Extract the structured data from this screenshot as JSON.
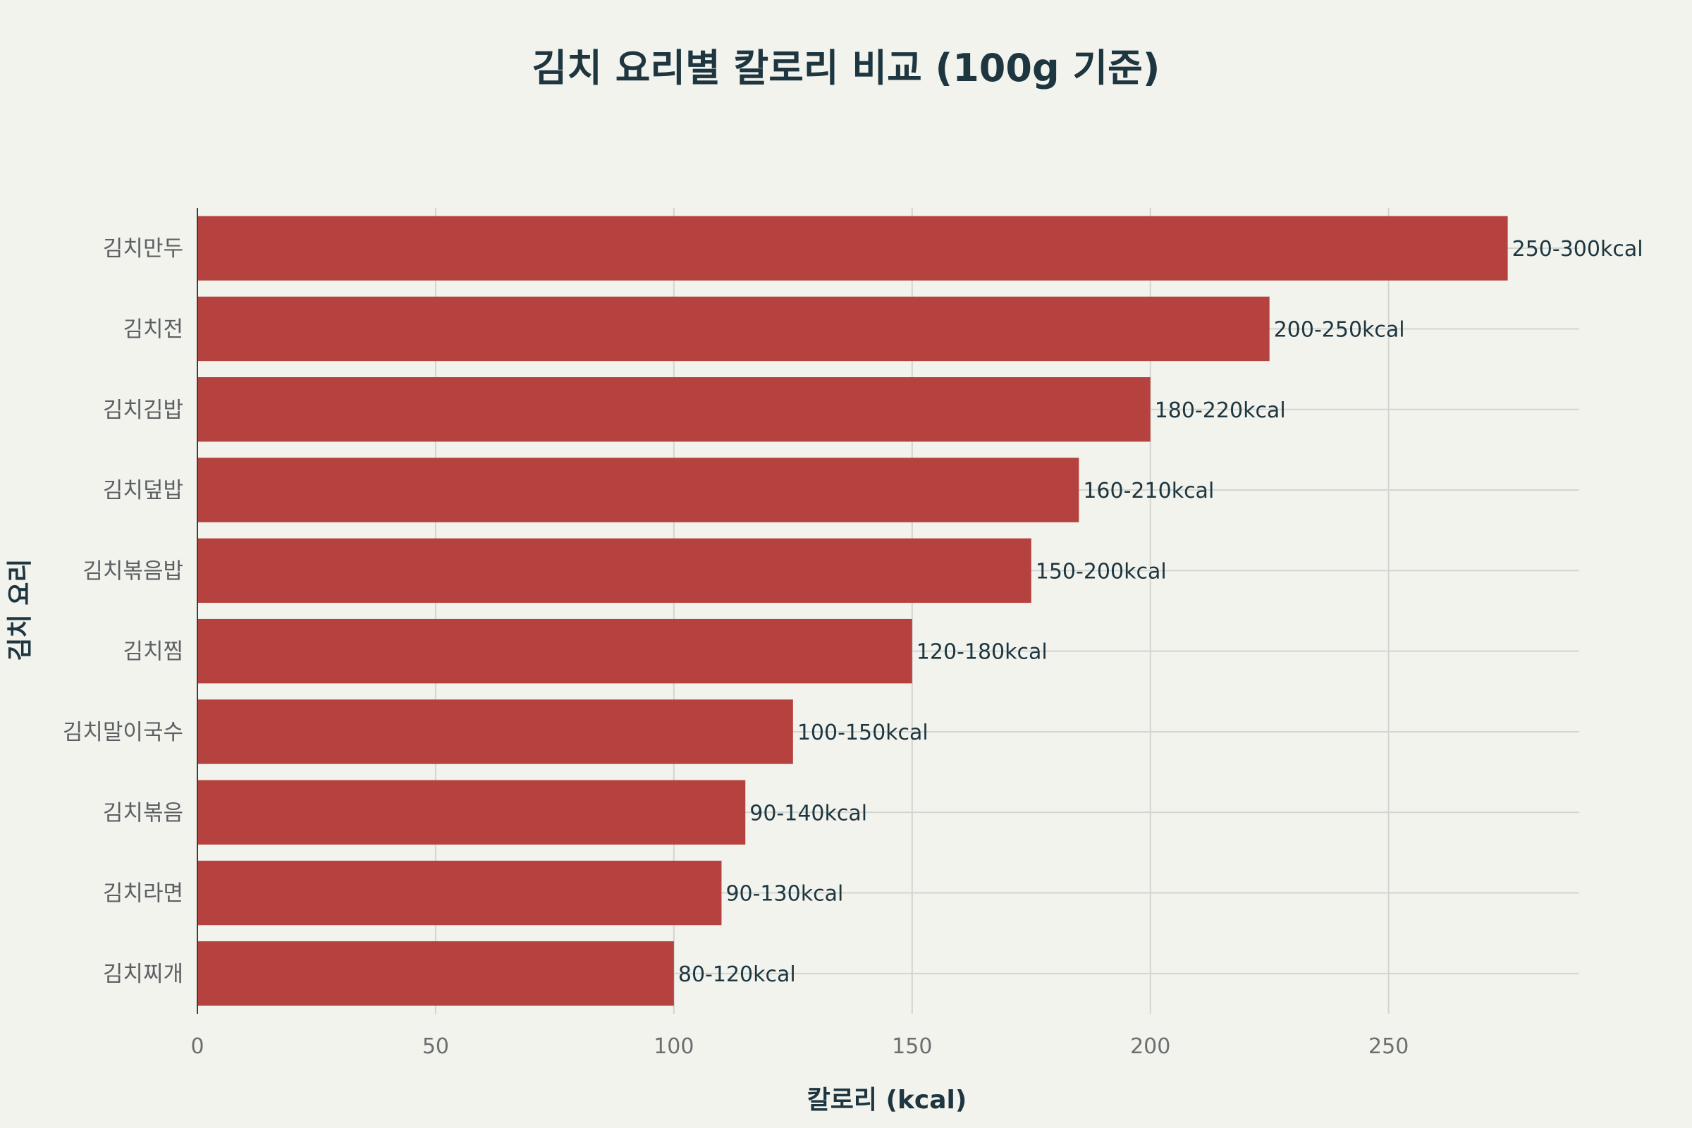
{
  "chart_data": {
    "type": "bar",
    "orientation": "horizontal",
    "title": "김치 요리별 칼로리 비교 (100g 기준)",
    "xlabel": "칼로리 (kcal)",
    "ylabel": "김치 요리",
    "xlim": [
      0,
      290
    ],
    "xticks": [
      0,
      50,
      100,
      150,
      200,
      250
    ],
    "grid": true,
    "bar_color": "#b5423e",
    "categories": [
      "김치만두",
      "김치전",
      "김치김밥",
      "김치덮밥",
      "김치볶음밥",
      "김치찜",
      "김치말이국수",
      "김치볶음",
      "김치라면",
      "김치찌개"
    ],
    "values": [
      275,
      225,
      200,
      185,
      175,
      150,
      125,
      115,
      110,
      100
    ],
    "data_labels": [
      "250-300kcal",
      "200-250kcal",
      "180-220kcal",
      "160-210kcal",
      "150-200kcal",
      "120-180kcal",
      "100-150kcal",
      "90-140kcal",
      "90-130kcal",
      "80-120kcal"
    ]
  }
}
